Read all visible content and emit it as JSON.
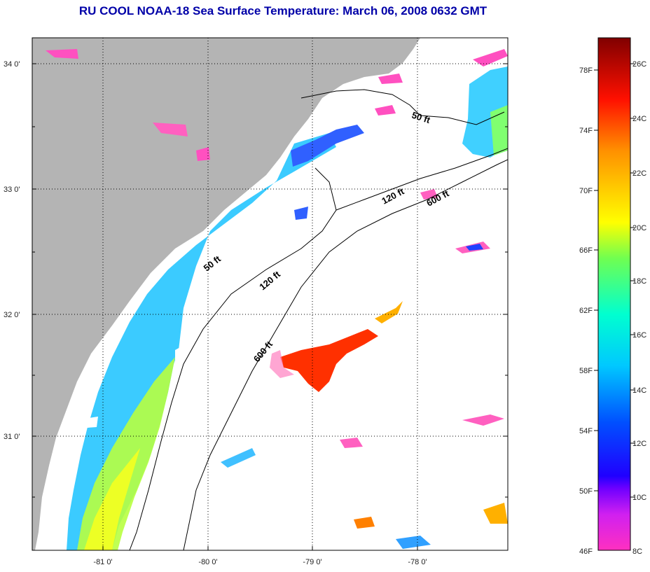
{
  "title": "RU COOL  NOAA-18  Sea Surface Temperature:  March 06, 2008 0632 GMT",
  "map": {
    "lat_labels": [
      "34 0'",
      "33 0'",
      "32 0'",
      "31 0'"
    ],
    "lon_labels": [
      "-81 0'",
      "-80 0'",
      "-79 0'",
      "-78 0'"
    ],
    "isobaths": [
      "50 ft",
      "120 ft",
      "600 ft",
      "50 ft",
      "120 ft",
      "600 ft"
    ],
    "colors": {
      "land": "#b4b4b4",
      "cloud": "#ffffff",
      "grid": "#000000"
    }
  },
  "colorbar": {
    "fahrenheit_labels": [
      "78F",
      "74F",
      "70F",
      "66F",
      "62F",
      "58F",
      "54F",
      "50F",
      "46F"
    ],
    "celsius_labels": [
      "26C",
      "24C",
      "22C",
      "20C",
      "18C",
      "16C",
      "14C",
      "12C",
      "10C",
      "8C"
    ],
    "gradient": [
      "#ff30c0",
      "#a000ff",
      "#3000ff",
      "#0040ff",
      "#00b8ff",
      "#00ffe0",
      "#40ff90",
      "#b0ff30",
      "#ffff00",
      "#ffb000",
      "#ff5000",
      "#e80000",
      "#900000"
    ]
  }
}
